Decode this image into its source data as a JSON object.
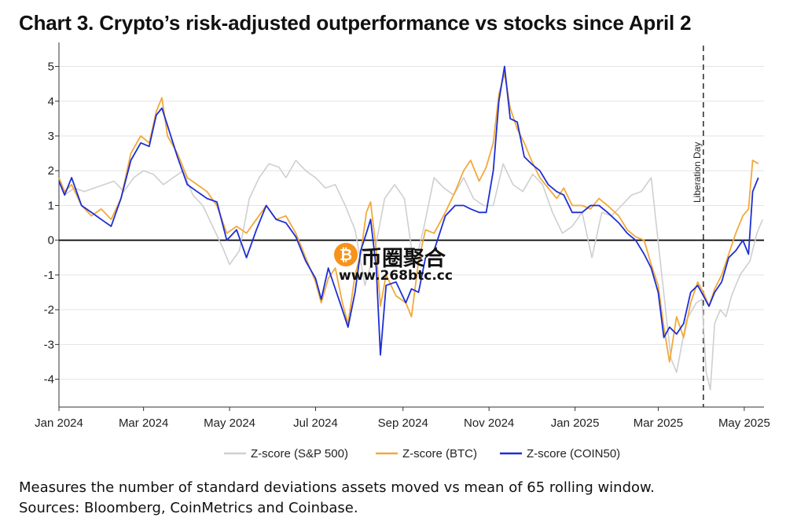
{
  "title": "Chart 3. Crypto’s risk-adjusted outperformance vs stocks since April 2",
  "notes": {
    "line1": "Measures the number of standard deviations assets moved vs mean of 65 rolling window.",
    "line2": "Sources: Bloomberg, CoinMetrics and Coinbase."
  },
  "watermark": {
    "icon": "bitcoin-icon",
    "icon_glyph": "₿",
    "name": "币圈聚合",
    "url": "www.268btc.cc"
  },
  "chart_data": {
    "type": "line",
    "xlabel": "",
    "ylabel": "",
    "x_range": [
      "2024-01-01",
      "2025-05-15"
    ],
    "ylim": [
      -4.8,
      5.6
    ],
    "yticks": [
      5,
      4,
      3,
      2,
      1,
      0,
      -1,
      -2,
      -3,
      -4
    ],
    "xticks": [
      {
        "label": "Jan 2024",
        "date": "2024-01-01"
      },
      {
        "label": "Mar 2024",
        "date": "2024-03-01"
      },
      {
        "label": "May 2024",
        "date": "2024-05-01"
      },
      {
        "label": "Jul 2024",
        "date": "2024-07-01"
      },
      {
        "label": "Sep 2024",
        "date": "2024-09-01"
      },
      {
        "label": "Nov 2024",
        "date": "2024-11-01"
      },
      {
        "label": "Jan 2025",
        "date": "2025-01-01"
      },
      {
        "label": "Mar 2025",
        "date": "2025-03-01"
      },
      {
        "label": "May 2025",
        "date": "2025-05-01"
      }
    ],
    "grid": "horizontal",
    "legend_position": "bottom-center",
    "annotations": [
      {
        "type": "vertical-dashed-line",
        "date": "2025-04-02",
        "label": "Liberation Day"
      },
      {
        "type": "zero-line",
        "y": 0
      }
    ],
    "series": [
      {
        "name": "Z-score (S&P 500)",
        "color": "#cfcfcf",
        "points": [
          [
            "2024-01-01",
            1.7
          ],
          [
            "2024-01-05",
            1.3
          ],
          [
            "2024-01-12",
            1.5
          ],
          [
            "2024-01-19",
            1.4
          ],
          [
            "2024-01-26",
            1.5
          ],
          [
            "2024-02-02",
            1.6
          ],
          [
            "2024-02-09",
            1.7
          ],
          [
            "2024-02-16",
            1.4
          ],
          [
            "2024-02-23",
            1.8
          ],
          [
            "2024-03-01",
            2.0
          ],
          [
            "2024-03-08",
            1.9
          ],
          [
            "2024-03-15",
            1.6
          ],
          [
            "2024-03-22",
            1.8
          ],
          [
            "2024-03-29",
            2.0
          ],
          [
            "2024-04-05",
            1.3
          ],
          [
            "2024-04-12",
            1.0
          ],
          [
            "2024-04-19",
            0.4
          ],
          [
            "2024-04-26",
            -0.2
          ],
          [
            "2024-05-01",
            -0.7
          ],
          [
            "2024-05-08",
            -0.3
          ],
          [
            "2024-05-15",
            1.2
          ],
          [
            "2024-05-22",
            1.8
          ],
          [
            "2024-05-29",
            2.2
          ],
          [
            "2024-06-05",
            2.1
          ],
          [
            "2024-06-10",
            1.8
          ],
          [
            "2024-06-17",
            2.3
          ],
          [
            "2024-06-24",
            2.0
          ],
          [
            "2024-07-01",
            1.8
          ],
          [
            "2024-07-08",
            1.5
          ],
          [
            "2024-07-15",
            1.6
          ],
          [
            "2024-07-22",
            1.0
          ],
          [
            "2024-07-29",
            0.3
          ],
          [
            "2024-08-05",
            -1.3
          ],
          [
            "2024-08-12",
            -0.3
          ],
          [
            "2024-08-19",
            1.2
          ],
          [
            "2024-08-26",
            1.6
          ],
          [
            "2024-09-02",
            1.2
          ],
          [
            "2024-09-09",
            -0.8
          ],
          [
            "2024-09-16",
            0.4
          ],
          [
            "2024-09-23",
            1.8
          ],
          [
            "2024-09-30",
            1.5
          ],
          [
            "2024-10-07",
            1.3
          ],
          [
            "2024-10-14",
            1.8
          ],
          [
            "2024-10-21",
            1.2
          ],
          [
            "2024-10-28",
            1.0
          ],
          [
            "2024-11-04",
            1.0
          ],
          [
            "2024-11-11",
            2.2
          ],
          [
            "2024-11-18",
            1.6
          ],
          [
            "2024-11-25",
            1.4
          ],
          [
            "2024-12-02",
            1.9
          ],
          [
            "2024-12-09",
            1.6
          ],
          [
            "2024-12-16",
            0.8
          ],
          [
            "2024-12-23",
            0.2
          ],
          [
            "2024-12-30",
            0.4
          ],
          [
            "2025-01-06",
            0.8
          ],
          [
            "2025-01-13",
            -0.5
          ],
          [
            "2025-01-20",
            0.8
          ],
          [
            "2025-01-27",
            0.7
          ],
          [
            "2025-02-03",
            1.0
          ],
          [
            "2025-02-10",
            1.3
          ],
          [
            "2025-02-17",
            1.4
          ],
          [
            "2025-02-24",
            1.8
          ],
          [
            "2025-03-03",
            -0.8
          ],
          [
            "2025-03-10",
            -3.4
          ],
          [
            "2025-03-14",
            -3.8
          ],
          [
            "2025-03-21",
            -2.3
          ],
          [
            "2025-03-28",
            -1.8
          ],
          [
            "2025-04-01",
            -1.7
          ],
          [
            "2025-04-04",
            -3.8
          ],
          [
            "2025-04-07",
            -4.3
          ],
          [
            "2025-04-10",
            -2.4
          ],
          [
            "2025-04-14",
            -2.0
          ],
          [
            "2025-04-18",
            -2.2
          ],
          [
            "2025-04-22",
            -1.6
          ],
          [
            "2025-04-28",
            -1.0
          ],
          [
            "2025-05-05",
            -0.6
          ],
          [
            "2025-05-10",
            0.2
          ],
          [
            "2025-05-14",
            0.6
          ]
        ]
      },
      {
        "name": "Z-score (BTC)",
        "color": "#f2a93b",
        "points": [
          [
            "2024-01-01",
            1.8
          ],
          [
            "2024-01-05",
            1.4
          ],
          [
            "2024-01-10",
            1.6
          ],
          [
            "2024-01-17",
            1.0
          ],
          [
            "2024-01-24",
            0.7
          ],
          [
            "2024-01-31",
            0.9
          ],
          [
            "2024-02-07",
            0.6
          ],
          [
            "2024-02-14",
            1.2
          ],
          [
            "2024-02-21",
            2.5
          ],
          [
            "2024-02-28",
            3.0
          ],
          [
            "2024-03-05",
            2.8
          ],
          [
            "2024-03-10",
            3.7
          ],
          [
            "2024-03-14",
            4.1
          ],
          [
            "2024-03-18",
            3.0
          ],
          [
            "2024-03-25",
            2.5
          ],
          [
            "2024-04-01",
            1.8
          ],
          [
            "2024-04-08",
            1.6
          ],
          [
            "2024-04-15",
            1.4
          ],
          [
            "2024-04-22",
            1.0
          ],
          [
            "2024-04-29",
            0.2
          ],
          [
            "2024-05-06",
            0.4
          ],
          [
            "2024-05-13",
            0.2
          ],
          [
            "2024-05-20",
            0.6
          ],
          [
            "2024-05-27",
            1.0
          ],
          [
            "2024-06-03",
            0.6
          ],
          [
            "2024-06-10",
            0.7
          ],
          [
            "2024-06-17",
            0.2
          ],
          [
            "2024-06-24",
            -0.5
          ],
          [
            "2024-07-01",
            -1.2
          ],
          [
            "2024-07-05",
            -1.8
          ],
          [
            "2024-07-10",
            -1.1
          ],
          [
            "2024-07-15",
            -0.8
          ],
          [
            "2024-07-20",
            -1.8
          ],
          [
            "2024-07-24",
            -2.4
          ],
          [
            "2024-07-29",
            -1.0
          ],
          [
            "2024-08-02",
            -0.4
          ],
          [
            "2024-08-06",
            0.8
          ],
          [
            "2024-08-09",
            1.1
          ],
          [
            "2024-08-13",
            -0.3
          ],
          [
            "2024-08-16",
            -1.9
          ],
          [
            "2024-08-20",
            -1.0
          ],
          [
            "2024-08-27",
            -1.6
          ],
          [
            "2024-09-03",
            -1.8
          ],
          [
            "2024-09-07",
            -2.2
          ],
          [
            "2024-09-12",
            -0.6
          ],
          [
            "2024-09-17",
            0.3
          ],
          [
            "2024-09-23",
            0.2
          ],
          [
            "2024-10-01",
            0.8
          ],
          [
            "2024-10-08",
            1.4
          ],
          [
            "2024-10-14",
            2.0
          ],
          [
            "2024-10-19",
            2.3
          ],
          [
            "2024-10-25",
            1.7
          ],
          [
            "2024-10-30",
            2.1
          ],
          [
            "2024-11-04",
            2.8
          ],
          [
            "2024-11-08",
            4.2
          ],
          [
            "2024-11-12",
            4.8
          ],
          [
            "2024-11-16",
            3.8
          ],
          [
            "2024-11-21",
            3.2
          ],
          [
            "2024-11-26",
            2.8
          ],
          [
            "2024-12-01",
            2.3
          ],
          [
            "2024-12-07",
            1.8
          ],
          [
            "2024-12-13",
            1.5
          ],
          [
            "2024-12-19",
            1.2
          ],
          [
            "2024-12-24",
            1.5
          ],
          [
            "2024-12-30",
            1.0
          ],
          [
            "2025-01-06",
            1.0
          ],
          [
            "2025-01-12",
            0.9
          ],
          [
            "2025-01-18",
            1.2
          ],
          [
            "2025-01-24",
            1.0
          ],
          [
            "2025-02-01",
            0.7
          ],
          [
            "2025-02-07",
            0.3
          ],
          [
            "2025-02-13",
            0.1
          ],
          [
            "2025-02-19",
            0.0
          ],
          [
            "2025-02-24",
            -0.7
          ],
          [
            "2025-03-01",
            -1.3
          ],
          [
            "2025-03-05",
            -2.5
          ],
          [
            "2025-03-09",
            -3.5
          ],
          [
            "2025-03-14",
            -2.2
          ],
          [
            "2025-03-19",
            -2.8
          ],
          [
            "2025-03-24",
            -1.8
          ],
          [
            "2025-03-29",
            -1.2
          ],
          [
            "2025-04-02",
            -1.5
          ],
          [
            "2025-04-06",
            -1.9
          ],
          [
            "2025-04-10",
            -1.4
          ],
          [
            "2025-04-15",
            -1.0
          ],
          [
            "2025-04-20",
            -0.4
          ],
          [
            "2025-04-25",
            0.2
          ],
          [
            "2025-04-30",
            0.7
          ],
          [
            "2025-05-04",
            0.9
          ],
          [
            "2025-05-07",
            2.3
          ],
          [
            "2025-05-11",
            2.2
          ]
        ]
      },
      {
        "name": "Z-score (COIN50)",
        "color": "#1d2fd4",
        "points": [
          [
            "2024-01-01",
            1.7
          ],
          [
            "2024-01-05",
            1.3
          ],
          [
            "2024-01-10",
            1.8
          ],
          [
            "2024-01-17",
            1.0
          ],
          [
            "2024-01-24",
            0.8
          ],
          [
            "2024-01-31",
            0.6
          ],
          [
            "2024-02-07",
            0.4
          ],
          [
            "2024-02-14",
            1.2
          ],
          [
            "2024-02-21",
            2.3
          ],
          [
            "2024-02-28",
            2.8
          ],
          [
            "2024-03-05",
            2.7
          ],
          [
            "2024-03-10",
            3.6
          ],
          [
            "2024-03-14",
            3.8
          ],
          [
            "2024-03-18",
            3.3
          ],
          [
            "2024-03-25",
            2.4
          ],
          [
            "2024-04-01",
            1.6
          ],
          [
            "2024-04-08",
            1.4
          ],
          [
            "2024-04-15",
            1.2
          ],
          [
            "2024-04-22",
            1.1
          ],
          [
            "2024-04-29",
            0.0
          ],
          [
            "2024-05-06",
            0.3
          ],
          [
            "2024-05-13",
            -0.5
          ],
          [
            "2024-05-20",
            0.3
          ],
          [
            "2024-05-27",
            1.0
          ],
          [
            "2024-06-03",
            0.6
          ],
          [
            "2024-06-10",
            0.5
          ],
          [
            "2024-06-17",
            0.1
          ],
          [
            "2024-06-24",
            -0.6
          ],
          [
            "2024-07-01",
            -1.1
          ],
          [
            "2024-07-05",
            -1.7
          ],
          [
            "2024-07-10",
            -0.8
          ],
          [
            "2024-07-15",
            -1.4
          ],
          [
            "2024-07-20",
            -2.0
          ],
          [
            "2024-07-24",
            -2.5
          ],
          [
            "2024-07-29",
            -1.5
          ],
          [
            "2024-08-02",
            -0.3
          ],
          [
            "2024-08-06",
            0.2
          ],
          [
            "2024-08-09",
            0.6
          ],
          [
            "2024-08-13",
            -0.8
          ],
          [
            "2024-08-16",
            -3.3
          ],
          [
            "2024-08-20",
            -1.3
          ],
          [
            "2024-08-27",
            -1.2
          ],
          [
            "2024-09-03",
            -1.8
          ],
          [
            "2024-09-07",
            -1.4
          ],
          [
            "2024-09-12",
            -1.5
          ],
          [
            "2024-09-17",
            -0.5
          ],
          [
            "2024-09-23",
            -0.3
          ],
          [
            "2024-10-01",
            0.7
          ],
          [
            "2024-10-08",
            1.0
          ],
          [
            "2024-10-14",
            1.0
          ],
          [
            "2024-10-19",
            0.9
          ],
          [
            "2024-10-25",
            0.8
          ],
          [
            "2024-10-30",
            0.8
          ],
          [
            "2024-11-04",
            2.0
          ],
          [
            "2024-11-08",
            4.0
          ],
          [
            "2024-11-12",
            5.0
          ],
          [
            "2024-11-16",
            3.5
          ],
          [
            "2024-11-21",
            3.4
          ],
          [
            "2024-11-26",
            2.4
          ],
          [
            "2024-12-01",
            2.2
          ],
          [
            "2024-12-07",
            2.0
          ],
          [
            "2024-12-13",
            1.6
          ],
          [
            "2024-12-19",
            1.4
          ],
          [
            "2024-12-24",
            1.3
          ],
          [
            "2024-12-30",
            0.8
          ],
          [
            "2025-01-06",
            0.8
          ],
          [
            "2025-01-12",
            1.0
          ],
          [
            "2025-01-18",
            1.0
          ],
          [
            "2025-01-24",
            0.8
          ],
          [
            "2025-02-01",
            0.5
          ],
          [
            "2025-02-07",
            0.2
          ],
          [
            "2025-02-13",
            0.0
          ],
          [
            "2025-02-19",
            -0.4
          ],
          [
            "2025-02-24",
            -0.8
          ],
          [
            "2025-03-01",
            -1.5
          ],
          [
            "2025-03-05",
            -2.8
          ],
          [
            "2025-03-09",
            -2.5
          ],
          [
            "2025-03-14",
            -2.7
          ],
          [
            "2025-03-19",
            -2.4
          ],
          [
            "2025-03-24",
            -1.5
          ],
          [
            "2025-03-29",
            -1.3
          ],
          [
            "2025-04-02",
            -1.6
          ],
          [
            "2025-04-06",
            -1.9
          ],
          [
            "2025-04-10",
            -1.5
          ],
          [
            "2025-04-15",
            -1.2
          ],
          [
            "2025-04-20",
            -0.5
          ],
          [
            "2025-04-25",
            -0.3
          ],
          [
            "2025-04-30",
            0.0
          ],
          [
            "2025-05-04",
            -0.4
          ],
          [
            "2025-05-07",
            1.4
          ],
          [
            "2025-05-11",
            1.8
          ]
        ]
      }
    ]
  }
}
